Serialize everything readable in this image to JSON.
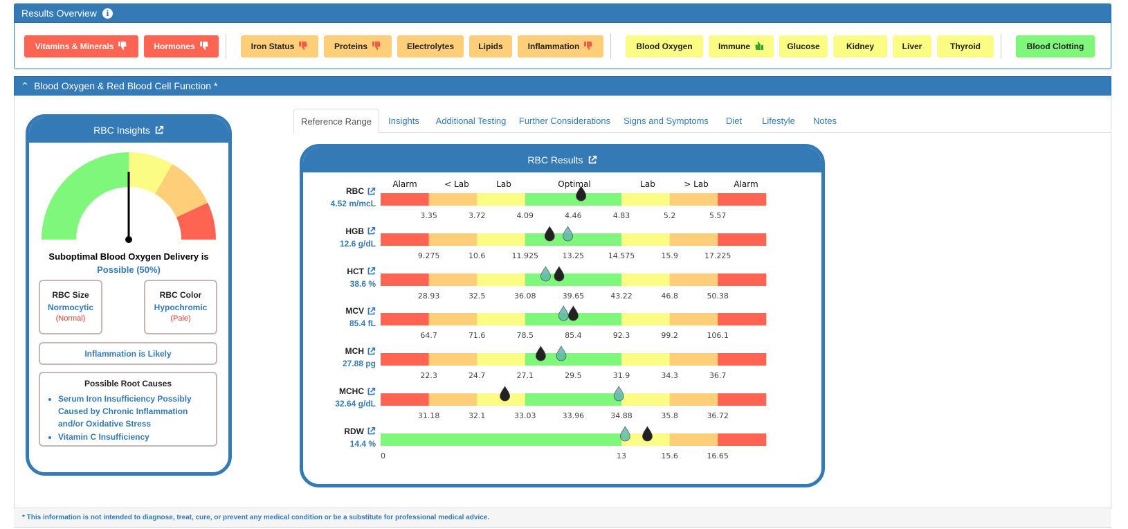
{
  "overview": {
    "title": "Results Overview",
    "info_icon": "i",
    "tiles": [
      {
        "label": "Vitamins & Minerals",
        "status": "red",
        "icon": "thumbs-down-icon"
      },
      {
        "label": "Hormones",
        "status": "red",
        "icon": "thumbs-down-icon"
      },
      {
        "label": "Iron Status",
        "status": "orange",
        "icon": "thumbs-down-icon"
      },
      {
        "label": "Proteins",
        "status": "orange",
        "icon": "thumbs-down-icon"
      },
      {
        "label": "Electrolytes",
        "status": "orange",
        "icon": ""
      },
      {
        "label": "Lipids",
        "status": "orange",
        "icon": ""
      },
      {
        "label": "Inflammation",
        "status": "orange",
        "icon": "thumbs-down-icon"
      },
      {
        "label": "Blood Oxygen",
        "status": "yellow",
        "icon": ""
      },
      {
        "label": "Immune",
        "status": "yellow",
        "icon": "thumbs-up-icon"
      },
      {
        "label": "Glucose",
        "status": "yellow",
        "icon": ""
      },
      {
        "label": "Kidney",
        "status": "yellow",
        "icon": ""
      },
      {
        "label": "Liver",
        "status": "yellow",
        "icon": ""
      },
      {
        "label": "Thyroid",
        "status": "yellow",
        "icon": ""
      },
      {
        "label": "Blood Clotting",
        "status": "green",
        "icon": ""
      }
    ]
  },
  "section": {
    "title": "Blood Oxygen & Red Blood Cell Function *",
    "collapse_icon": "chevron-up-icon"
  },
  "insights": {
    "title": "RBC Insights",
    "gauge_level": 0.5,
    "caption": "Suboptimal Blood Oxygen Delivery is",
    "caption_value": "Possible (50%)",
    "size": {
      "title": "RBC Size",
      "value": "Normocytic",
      "sub": "(Normal)"
    },
    "color": {
      "title": "RBC Color",
      "value": "Hypochromic",
      "sub": "(Pale)"
    },
    "inflammation": "Inflammation is Likely",
    "root_title": "Possible Root Causes",
    "root_causes": [
      "Serum Iron Insufficiency Possibly Caused by Chronic Inflammation and/or Oxidative Stress",
      "Vitamin C Insufficiency"
    ]
  },
  "tabs": [
    "Reference Range",
    "Insights",
    "Additional Testing",
    "Further Considerations",
    "Signs and Symptoms",
    "Diet",
    "Lifestyle",
    "Notes"
  ],
  "active_tab": "Reference Range",
  "results": {
    "title": "RBC Results",
    "zone_labels": [
      "Alarm",
      "< Lab",
      "Lab",
      "Optimal",
      "Lab",
      "> Lab",
      "Alarm"
    ],
    "colors": {
      "alarm": "#ff6352",
      "outside": "#ffce78",
      "lab": "#fbfc83",
      "optimal": "#7ff77a",
      "current": "#222222",
      "previous": "#5fb8ad"
    },
    "rows": [
      {
        "name": "RBC",
        "value": "4.52 m/mcL",
        "ticks": [
          "3.35",
          "3.72",
          "4.09",
          "4.46",
          "4.83",
          "5.2",
          "5.57"
        ],
        "current": 4.52,
        "previous": 4.52,
        "zones": [
          "alarm",
          "outside",
          "lab",
          "optimal",
          "optimal",
          "lab",
          "outside",
          "alarm"
        ]
      },
      {
        "name": "HGB",
        "value": "12.6 g/dL",
        "ticks": [
          "9.275",
          "10.6",
          "11.925",
          "13.25",
          "14.575",
          "15.9",
          "17.225"
        ],
        "current": 12.6,
        "previous": 13.1,
        "zones": [
          "alarm",
          "outside",
          "lab",
          "optimal",
          "optimal",
          "lab",
          "outside",
          "alarm"
        ]
      },
      {
        "name": "HCT",
        "value": "38.6 %",
        "ticks": [
          "28.93",
          "32.5",
          "36.08",
          "39.65",
          "43.22",
          "46.8",
          "50.38"
        ],
        "current": 38.6,
        "previous": 37.6,
        "zones": [
          "alarm",
          "outside",
          "lab",
          "optimal",
          "optimal",
          "lab",
          "outside",
          "alarm"
        ]
      },
      {
        "name": "MCV",
        "value": "85.4 fL",
        "ticks": [
          "64.7",
          "71.6",
          "78.5",
          "85.4",
          "92.3",
          "99.2",
          "106.1"
        ],
        "current": 85.4,
        "previous": 84.0,
        "zones": [
          "alarm",
          "outside",
          "lab",
          "optimal",
          "optimal",
          "lab",
          "outside",
          "alarm"
        ]
      },
      {
        "name": "MCH",
        "value": "27.88 pg",
        "ticks": [
          "22.3",
          "24.7",
          "27.1",
          "29.5",
          "31.9",
          "34.3",
          "36.7"
        ],
        "current": 27.88,
        "previous": 28.9,
        "zones": [
          "alarm",
          "outside",
          "lab",
          "optimal",
          "optimal",
          "lab",
          "outside",
          "alarm"
        ]
      },
      {
        "name": "MCHC",
        "value": "32.64 g/dL",
        "ticks": [
          "31.18",
          "32.1",
          "33.03",
          "33.96",
          "34.88",
          "35.8",
          "36.72"
        ],
        "current": 32.64,
        "previous": 34.83,
        "zones": [
          "alarm",
          "outside",
          "lab",
          "optimal",
          "optimal",
          "lab",
          "outside",
          "alarm"
        ]
      },
      {
        "name": "RDW",
        "value": "14.4 %",
        "ticks": [
          "0",
          "",
          "",
          "",
          "13",
          "15.6",
          "16.65"
        ],
        "current": 14.4,
        "previous": 13.2,
        "zones": [
          "optimal",
          "optimal",
          "optimal",
          "optimal",
          "optimal",
          "lab",
          "outside",
          "alarm"
        ]
      }
    ]
  },
  "disclaimer": "* This information is not intended to diagnose, treat, cure, or prevent any medical condition or be a substitute for professional medical advice."
}
